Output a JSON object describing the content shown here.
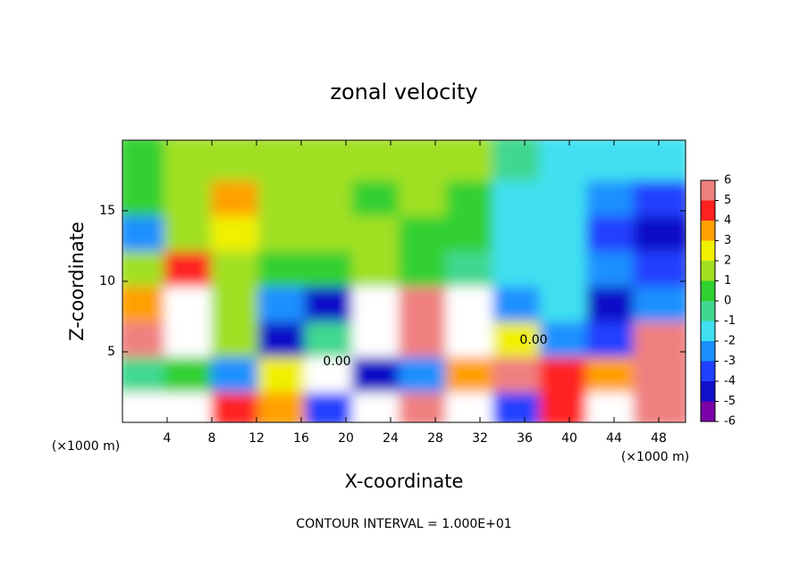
{
  "chart_data": {
    "type": "heatmap",
    "title": "zonal velocity",
    "x_label": "X-coordinate",
    "y_label": "Z-coordinate",
    "x_unit": "(×1000 m)",
    "y_unit": "(×1000 m)",
    "footer": "CONTOUR INTERVAL = 1.000E+01",
    "annotations": [
      "0.00",
      "0.00"
    ],
    "x": [
      2.1,
      6.3,
      10.5,
      14.7,
      18.9,
      23.1,
      27.3,
      31.5,
      35.7,
      39.9,
      44.1,
      48.3
    ],
    "y": [
      1.25,
      3.75,
      6.25,
      8.75,
      11.25,
      13.75,
      16.25,
      18.75
    ],
    "z": [
      [
        7,
        7,
        4,
        3,
        -4,
        7,
        5,
        7,
        -4,
        4,
        7,
        5
      ],
      [
        -1,
        0,
        -3,
        2,
        7,
        -5,
        -3,
        3,
        5,
        4,
        3,
        5
      ],
      [
        5,
        7,
        1,
        -5,
        -1,
        7,
        5,
        7,
        2,
        -3,
        -4,
        5
      ],
      [
        3,
        7,
        1,
        -3,
        -5,
        7,
        6,
        7,
        -3,
        -2,
        -5,
        -3
      ],
      [
        1,
        4,
        1,
        0,
        0,
        1,
        0,
        -1,
        -2,
        -2,
        -3,
        -4
      ],
      [
        -3,
        1,
        2,
        1,
        1,
        1,
        0,
        0,
        -2,
        -2,
        -4,
        -5
      ],
      [
        0,
        1,
        3,
        1,
        1,
        0,
        1,
        0,
        -2,
        -2,
        -3,
        -4
      ],
      [
        0,
        1,
        1,
        1,
        1,
        1,
        1,
        1,
        -1,
        -2,
        -2,
        -2
      ]
    ],
    "xlim": [
      0,
      50.4
    ],
    "ylim": [
      0,
      20
    ],
    "xticks": [
      4,
      8,
      12,
      16,
      20,
      24,
      28,
      32,
      36,
      40,
      44,
      48
    ],
    "yticks": [
      5,
      10,
      15
    ],
    "colorbar_lim": [
      -6,
      6
    ],
    "colorbar_ticks": [
      -6,
      -5,
      -4,
      -3,
      -2,
      -1,
      0,
      1,
      2,
      3,
      4,
      5,
      6
    ],
    "colors": [
      "#7a00a8",
      "#1010c8",
      "#2040ff",
      "#1a90ff",
      "#40e0f0",
      "#40d890",
      "#30d030",
      "#a0e020",
      "#f0f000",
      "#ffa000",
      "#ff2020",
      "#f08080"
    ],
    "clip_color": "#ffffff"
  }
}
